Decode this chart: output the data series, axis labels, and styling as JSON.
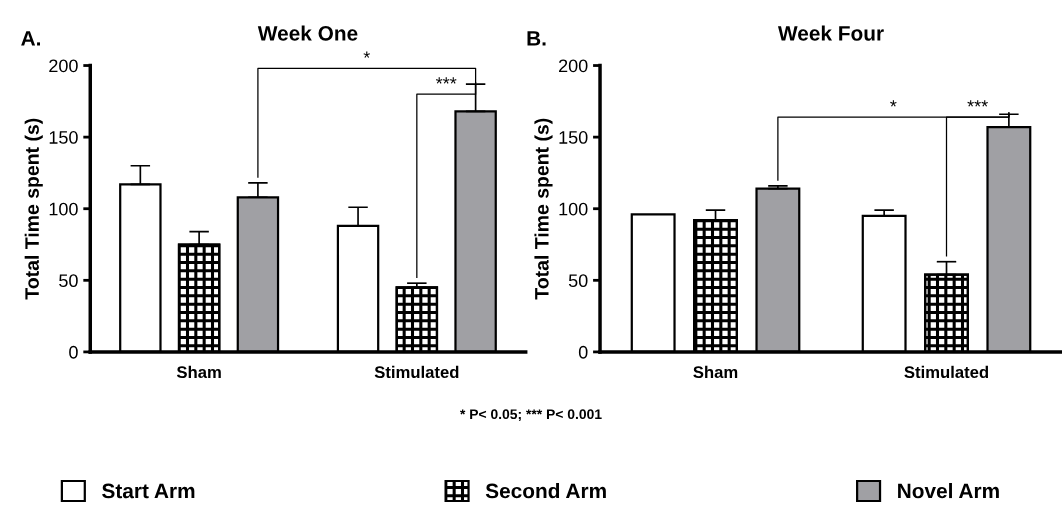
{
  "chart_data": [
    {
      "type": "bar",
      "title": "Week One",
      "subtitle": "A.",
      "ylabel": "Total Time spent (s)",
      "categories": [
        "Sham",
        "Stimulated"
      ],
      "ylim": [
        0,
        200
      ],
      "yticks": [
        0,
        50,
        100,
        150,
        200
      ],
      "grid": false,
      "legend": "bottom",
      "series": [
        {
          "name": "Start Arm",
          "color": "#ffffff",
          "values": [
            117,
            88
          ],
          "errors": [
            [
              117,
              130
            ],
            [
              88,
              101
            ]
          ]
        },
        {
          "name": "Second Arm",
          "color": "#000000",
          "values": [
            75,
            45
          ],
          "errors": [
            [
              75,
              84
            ],
            [
              45,
              48
            ]
          ]
        },
        {
          "name": "Novel Arm",
          "color": "#a0a0a4",
          "values": [
            108,
            168
          ],
          "errors": [
            [
              108,
              118
            ],
            [
              168,
              187
            ]
          ]
        }
      ],
      "annotations": [
        "*",
        "***",
        "* P< 0.05; *** P< 0.001"
      ]
    },
    {
      "type": "bar",
      "title": "Week Four",
      "subtitle": "B.",
      "ylabel": "Total Time spent (s)",
      "categories": [
        "Sham",
        "Stimulated"
      ],
      "ylim": [
        0,
        200
      ],
      "yticks": [
        0,
        50,
        100,
        150,
        200
      ],
      "grid": false,
      "series": [
        {
          "color": "#ffffff",
          "values": [
            96,
            95
          ],
          "errors": [
            null,
            [
              95,
              99
            ]
          ]
        },
        {
          "color": "#000000",
          "values": [
            92,
            54
          ],
          "errors": [
            [
              92,
              99
            ],
            [
              54,
              63
            ]
          ]
        },
        {
          "color": "#a0a0a4",
          "values": [
            114,
            157
          ],
          "errors": [
            [
              114,
              116
            ],
            [
              157,
              166
            ]
          ]
        }
      ],
      "annotations": [
        "*",
        "***"
      ]
    }
  ]
}
